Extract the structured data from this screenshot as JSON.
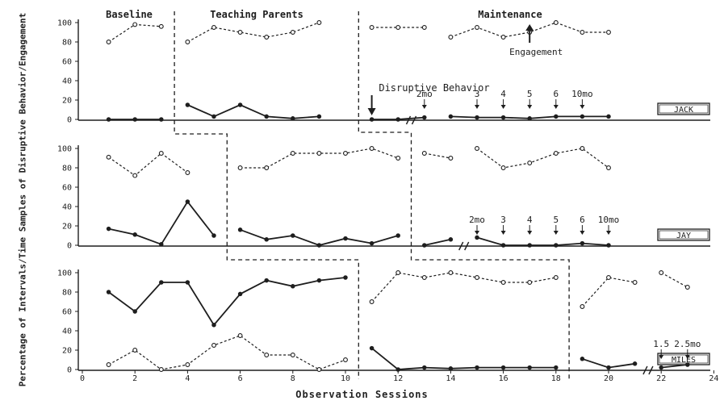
{
  "chart_data": {
    "type": "line",
    "xlabel": "Observation Sessions",
    "ylabel": "Percentage of Intervals/Time Samples of Disruptive Behavior/Engagement",
    "xlim": [
      0,
      24
    ],
    "ylim": [
      0,
      100
    ],
    "x_ticks": [
      0,
      2,
      4,
      6,
      8,
      10,
      12,
      14,
      16,
      18,
      20,
      22,
      24
    ],
    "y_ticks": [
      0,
      20,
      40,
      60,
      80,
      100
    ],
    "phases": [
      "Baseline",
      "Teaching Parents",
      "Maintenance"
    ],
    "annotations": {
      "engagement": "Engagement",
      "disruptive": "Disruptive Behavior"
    },
    "panels": [
      {
        "participant": "JACK",
        "phase_changes": [
          3.5,
          10.5
        ],
        "followup_labels": [
          {
            "x": 13,
            "text": "2mo"
          },
          {
            "x": 15,
            "text": "3"
          },
          {
            "x": 16,
            "text": "4"
          },
          {
            "x": 17,
            "text": "5"
          },
          {
            "x": 18,
            "text": "6"
          },
          {
            "x": 19,
            "text": "10mo"
          }
        ],
        "series": [
          {
            "name": "Engagement",
            "segments": [
              {
                "x": [
                  1,
                  2,
                  3
                ],
                "y": [
                  80,
                  98,
                  96
                ]
              },
              {
                "x": [
                  4,
                  5,
                  6,
                  7,
                  8,
                  9
                ],
                "y": [
                  80,
                  95,
                  90,
                  85,
                  90,
                  100
                ]
              },
              {
                "x": [
                  11,
                  12,
                  13
                ],
                "y": [
                  95,
                  95,
                  95
                ]
              },
              {
                "x": [
                  14,
                  15,
                  16,
                  17,
                  18,
                  19,
                  20
                ],
                "y": [
                  85,
                  95,
                  85,
                  90,
                  100,
                  90,
                  90
                ]
              }
            ]
          },
          {
            "name": "Disruptive Behavior",
            "segments": [
              {
                "x": [
                  1,
                  2,
                  3
                ],
                "y": [
                  0,
                  0,
                  0
                ]
              },
              {
                "x": [
                  4,
                  5,
                  6,
                  7,
                  8,
                  9
                ],
                "y": [
                  15,
                  3,
                  15,
                  3,
                  1,
                  3
                ]
              },
              {
                "x": [
                  11,
                  12,
                  13
                ],
                "y": [
                  0,
                  0,
                  2
                ]
              },
              {
                "x": [
                  14,
                  15,
                  16,
                  17,
                  18,
                  19,
                  20
                ],
                "y": [
                  3,
                  2,
                  2,
                  1,
                  3,
                  3,
                  3
                ]
              }
            ]
          }
        ]
      },
      {
        "participant": "JAY",
        "phase_changes": [
          5.5,
          12.5
        ],
        "followup_labels": [
          {
            "x": 15,
            "text": "2mo"
          },
          {
            "x": 16,
            "text": "3"
          },
          {
            "x": 17,
            "text": "4"
          },
          {
            "x": 18,
            "text": "5"
          },
          {
            "x": 19,
            "text": "6"
          },
          {
            "x": 20,
            "text": "10mo"
          }
        ],
        "series": [
          {
            "name": "Engagement",
            "segments": [
              {
                "x": [
                  1,
                  2,
                  3,
                  4
                ],
                "y": [
                  91,
                  72,
                  95,
                  75
                ]
              },
              {
                "x": [
                  6,
                  7,
                  8,
                  9,
                  10,
                  11,
                  12
                ],
                "y": [
                  80,
                  80,
                  95,
                  95,
                  95,
                  100,
                  90
                ]
              },
              {
                "x": [
                  13,
                  14
                ],
                "y": [
                  95,
                  90
                ]
              },
              {
                "x": [
                  15,
                  16,
                  17,
                  18,
                  19,
                  20
                ],
                "y": [
                  100,
                  80,
                  85,
                  95,
                  100,
                  80
                ]
              }
            ]
          },
          {
            "name": "Disruptive Behavior",
            "segments": [
              {
                "x": [
                  1,
                  2,
                  3,
                  4,
                  5
                ],
                "y": [
                  17,
                  11,
                  1,
                  45,
                  10
                ]
              },
              {
                "x": [
                  6,
                  7,
                  8,
                  9,
                  10,
                  11,
                  12
                ],
                "y": [
                  16,
                  6,
                  10,
                  0,
                  7,
                  2,
                  10
                ]
              },
              {
                "x": [
                  13,
                  14
                ],
                "y": [
                  0,
                  6
                ]
              },
              {
                "x": [
                  15,
                  16,
                  17,
                  18,
                  19,
                  20
                ],
                "y": [
                  8,
                  0,
                  0,
                  0,
                  2,
                  0
                ]
              }
            ]
          }
        ]
      },
      {
        "participant": "MILES",
        "phase_changes": [
          10.5,
          18.5
        ],
        "followup_labels": [
          {
            "x": 22,
            "text": "1.5"
          },
          {
            "x": 23,
            "text": "2.5mo"
          }
        ],
        "series": [
          {
            "name": "Engagement",
            "segments": [
              {
                "x": [
                  1,
                  2,
                  3,
                  4,
                  5,
                  6,
                  7,
                  8,
                  9,
                  10
                ],
                "y": [
                  5,
                  20,
                  0,
                  5,
                  25,
                  35,
                  15,
                  15,
                  0,
                  10
                ]
              },
              {
                "x": [
                  11,
                  12,
                  13,
                  14,
                  15,
                  16,
                  17,
                  18
                ],
                "y": [
                  70,
                  100,
                  95,
                  100,
                  95,
                  90,
                  90,
                  95
                ]
              },
              {
                "x": [
                  19,
                  20,
                  21
                ],
                "y": [
                  65,
                  95,
                  90
                ]
              },
              {
                "x": [
                  22,
                  23
                ],
                "y": [
                  100,
                  85
                ]
              }
            ]
          },
          {
            "name": "Disruptive Behavior",
            "segments": [
              {
                "x": [
                  1,
                  2,
                  3,
                  4,
                  5,
                  6,
                  7,
                  8,
                  9,
                  10
                ],
                "y": [
                  80,
                  60,
                  90,
                  90,
                  46,
                  78,
                  92,
                  86,
                  92,
                  95
                ]
              },
              {
                "x": [
                  11,
                  12,
                  13,
                  14,
                  15,
                  16,
                  17,
                  18
                ],
                "y": [
                  22,
                  0,
                  2,
                  1,
                  2,
                  2,
                  2,
                  2
                ]
              },
              {
                "x": [
                  19,
                  20,
                  21
                ],
                "y": [
                  11,
                  2,
                  6
                ]
              },
              {
                "x": [
                  22,
                  23
                ],
                "y": [
                  2,
                  5
                ]
              }
            ]
          }
        ]
      }
    ]
  }
}
